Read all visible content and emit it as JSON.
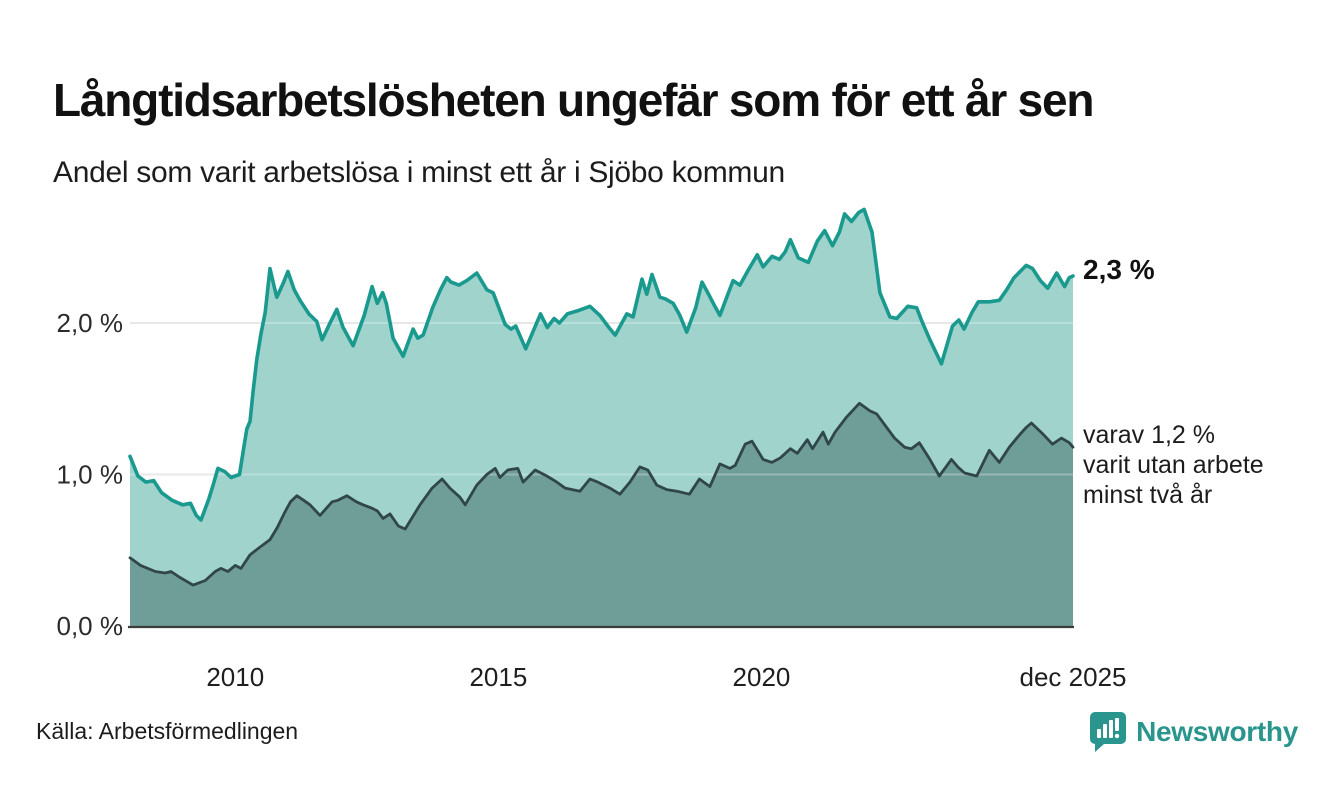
{
  "header": {
    "title": "Långtidsarbetslösheten ungefär som för ett år sen",
    "subtitle": "Andel som varit arbetslösa i minst ett år i Sjöbo kommun"
  },
  "annotations": {
    "latest_total": "2,3 %",
    "subset_lines": [
      "varav 1,2 %",
      "varit utan arbete",
      "minst två år"
    ]
  },
  "footer": {
    "source": "Källa: Arbetsförmedlingen",
    "brand": "Newsworthy",
    "brand_color": "#2a958d"
  },
  "chart_data": {
    "type": "area",
    "title": "Långtidsarbetslösheten ungefär som för ett år sen",
    "subtitle": "Andel som varit arbetslösa i minst ett år i Sjöbo kommun",
    "x_unit": "decimal_year",
    "x_range": [
      2008.0,
      2025.92
    ],
    "ylim": [
      0,
      2.9
    ],
    "grid": true,
    "legend_position": "none",
    "y_ticks": [
      {
        "value": 0.0,
        "label": "0,0 %"
      },
      {
        "value": 1.0,
        "label": "1,0 %"
      },
      {
        "value": 2.0,
        "label": "2,0 %"
      }
    ],
    "x_ticks": [
      {
        "value": 2010.0,
        "label": "2010"
      },
      {
        "value": 2015.0,
        "label": "2015"
      },
      {
        "value": 2020.0,
        "label": "2020"
      },
      {
        "value": 2025.92,
        "label": "dec 2025"
      }
    ],
    "series": [
      {
        "name": "Arbetslösa minst ett år",
        "end_value_pct": 2.3,
        "line_color": "#1a998f",
        "fill_color": "#9fd3cc",
        "line_width": 3.6,
        "points": [
          [
            2008.0,
            1.12
          ],
          [
            2008.15,
            0.99
          ],
          [
            2008.3,
            0.95
          ],
          [
            2008.45,
            0.96
          ],
          [
            2008.6,
            0.88
          ],
          [
            2008.8,
            0.83
          ],
          [
            2009.0,
            0.8
          ],
          [
            2009.15,
            0.81
          ],
          [
            2009.26,
            0.73
          ],
          [
            2009.35,
            0.7
          ],
          [
            2009.5,
            0.84
          ],
          [
            2009.58,
            0.93
          ],
          [
            2009.67,
            1.04
          ],
          [
            2009.8,
            1.02
          ],
          [
            2009.92,
            0.98
          ],
          [
            2010.08,
            1.0
          ],
          [
            2010.15,
            1.15
          ],
          [
            2010.22,
            1.3
          ],
          [
            2010.28,
            1.35
          ],
          [
            2010.34,
            1.55
          ],
          [
            2010.41,
            1.76
          ],
          [
            2010.49,
            1.93
          ],
          [
            2010.57,
            2.07
          ],
          [
            2010.66,
            2.36
          ],
          [
            2010.74,
            2.24
          ],
          [
            2010.79,
            2.17
          ],
          [
            2010.92,
            2.27
          ],
          [
            2011.0,
            2.34
          ],
          [
            2011.12,
            2.22
          ],
          [
            2011.23,
            2.15
          ],
          [
            2011.4,
            2.06
          ],
          [
            2011.55,
            2.01
          ],
          [
            2011.65,
            1.89
          ],
          [
            2011.8,
            2.0
          ],
          [
            2011.93,
            2.09
          ],
          [
            2012.05,
            1.97
          ],
          [
            2012.24,
            1.85
          ],
          [
            2012.45,
            2.05
          ],
          [
            2012.6,
            2.24
          ],
          [
            2012.7,
            2.13
          ],
          [
            2012.8,
            2.2
          ],
          [
            2012.87,
            2.13
          ],
          [
            2013.0,
            1.9
          ],
          [
            2013.19,
            1.78
          ],
          [
            2013.38,
            1.96
          ],
          [
            2013.47,
            1.9
          ],
          [
            2013.57,
            1.92
          ],
          [
            2013.75,
            2.1
          ],
          [
            2013.9,
            2.22
          ],
          [
            2014.02,
            2.3
          ],
          [
            2014.1,
            2.27
          ],
          [
            2014.25,
            2.25
          ],
          [
            2014.4,
            2.28
          ],
          [
            2014.59,
            2.33
          ],
          [
            2014.78,
            2.22
          ],
          [
            2014.9,
            2.2
          ],
          [
            2015.13,
            1.99
          ],
          [
            2015.24,
            1.96
          ],
          [
            2015.33,
            1.98
          ],
          [
            2015.52,
            1.83
          ],
          [
            2015.8,
            2.06
          ],
          [
            2015.93,
            1.97
          ],
          [
            2016.06,
            2.03
          ],
          [
            2016.16,
            2.0
          ],
          [
            2016.31,
            2.06
          ],
          [
            2016.5,
            2.08
          ],
          [
            2016.74,
            2.11
          ],
          [
            2016.93,
            2.05
          ],
          [
            2017.1,
            1.97
          ],
          [
            2017.22,
            1.92
          ],
          [
            2017.44,
            2.06
          ],
          [
            2017.56,
            2.04
          ],
          [
            2017.73,
            2.29
          ],
          [
            2017.82,
            2.19
          ],
          [
            2017.92,
            2.32
          ],
          [
            2018.07,
            2.17
          ],
          [
            2018.17,
            2.16
          ],
          [
            2018.32,
            2.13
          ],
          [
            2018.45,
            2.05
          ],
          [
            2018.58,
            1.94
          ],
          [
            2018.75,
            2.1
          ],
          [
            2018.87,
            2.27
          ],
          [
            2018.98,
            2.2
          ],
          [
            2019.1,
            2.12
          ],
          [
            2019.21,
            2.05
          ],
          [
            2019.35,
            2.18
          ],
          [
            2019.46,
            2.28
          ],
          [
            2019.59,
            2.25
          ],
          [
            2019.75,
            2.35
          ],
          [
            2019.92,
            2.45
          ],
          [
            2020.03,
            2.37
          ],
          [
            2020.2,
            2.44
          ],
          [
            2020.34,
            2.42
          ],
          [
            2020.45,
            2.47
          ],
          [
            2020.55,
            2.55
          ],
          [
            2020.7,
            2.43
          ],
          [
            2020.89,
            2.4
          ],
          [
            2021.06,
            2.54
          ],
          [
            2021.2,
            2.61
          ],
          [
            2021.35,
            2.51
          ],
          [
            2021.48,
            2.6
          ],
          [
            2021.58,
            2.72
          ],
          [
            2021.71,
            2.67
          ],
          [
            2021.85,
            2.73
          ],
          [
            2021.95,
            2.75
          ],
          [
            2022.1,
            2.6
          ],
          [
            2022.25,
            2.2
          ],
          [
            2022.44,
            2.04
          ],
          [
            2022.57,
            2.03
          ],
          [
            2022.78,
            2.11
          ],
          [
            2022.95,
            2.1
          ],
          [
            2023.05,
            2.01
          ],
          [
            2023.2,
            1.89
          ],
          [
            2023.42,
            1.73
          ],
          [
            2023.63,
            1.98
          ],
          [
            2023.75,
            2.02
          ],
          [
            2023.85,
            1.96
          ],
          [
            2024.0,
            2.07
          ],
          [
            2024.12,
            2.14
          ],
          [
            2024.33,
            2.14
          ],
          [
            2024.52,
            2.15
          ],
          [
            2024.66,
            2.22
          ],
          [
            2024.8,
            2.3
          ],
          [
            2025.03,
            2.38
          ],
          [
            2025.15,
            2.36
          ],
          [
            2025.3,
            2.28
          ],
          [
            2025.44,
            2.23
          ],
          [
            2025.61,
            2.33
          ],
          [
            2025.76,
            2.24
          ],
          [
            2025.85,
            2.3
          ],
          [
            2025.92,
            2.31
          ]
        ]
      },
      {
        "name": "Varav utan arbete minst två år",
        "end_value_pct": 1.2,
        "line_color": "#31464a",
        "fill_color": "#6f9d97",
        "line_width": 2.8,
        "points": [
          [
            2008.0,
            0.45
          ],
          [
            2008.2,
            0.4
          ],
          [
            2008.48,
            0.36
          ],
          [
            2008.67,
            0.35
          ],
          [
            2008.78,
            0.36
          ],
          [
            2008.95,
            0.32
          ],
          [
            2009.1,
            0.29
          ],
          [
            2009.2,
            0.27
          ],
          [
            2009.43,
            0.3
          ],
          [
            2009.62,
            0.36
          ],
          [
            2009.73,
            0.38
          ],
          [
            2009.86,
            0.36
          ],
          [
            2010.0,
            0.4
          ],
          [
            2010.11,
            0.38
          ],
          [
            2010.28,
            0.47
          ],
          [
            2010.43,
            0.51
          ],
          [
            2010.66,
            0.57
          ],
          [
            2010.8,
            0.65
          ],
          [
            2010.94,
            0.75
          ],
          [
            2011.05,
            0.82
          ],
          [
            2011.17,
            0.86
          ],
          [
            2011.3,
            0.83
          ],
          [
            2011.42,
            0.8
          ],
          [
            2011.61,
            0.73
          ],
          [
            2011.84,
            0.82
          ],
          [
            2011.95,
            0.83
          ],
          [
            2012.12,
            0.86
          ],
          [
            2012.3,
            0.82
          ],
          [
            2012.43,
            0.8
          ],
          [
            2012.58,
            0.78
          ],
          [
            2012.7,
            0.76
          ],
          [
            2012.81,
            0.71
          ],
          [
            2012.94,
            0.74
          ],
          [
            2013.1,
            0.66
          ],
          [
            2013.23,
            0.64
          ],
          [
            2013.51,
            0.8
          ],
          [
            2013.74,
            0.91
          ],
          [
            2013.93,
            0.97
          ],
          [
            2014.08,
            0.91
          ],
          [
            2014.27,
            0.85
          ],
          [
            2014.37,
            0.8
          ],
          [
            2014.59,
            0.93
          ],
          [
            2014.78,
            1.0
          ],
          [
            2014.94,
            1.04
          ],
          [
            2015.03,
            0.98
          ],
          [
            2015.18,
            1.03
          ],
          [
            2015.37,
            1.04
          ],
          [
            2015.47,
            0.95
          ],
          [
            2015.7,
            1.03
          ],
          [
            2015.92,
            0.99
          ],
          [
            2016.11,
            0.95
          ],
          [
            2016.27,
            0.91
          ],
          [
            2016.55,
            0.89
          ],
          [
            2016.74,
            0.97
          ],
          [
            2016.89,
            0.95
          ],
          [
            2017.12,
            0.91
          ],
          [
            2017.31,
            0.87
          ],
          [
            2017.5,
            0.95
          ],
          [
            2017.69,
            1.05
          ],
          [
            2017.84,
            1.03
          ],
          [
            2018.01,
            0.93
          ],
          [
            2018.2,
            0.9
          ],
          [
            2018.39,
            0.89
          ],
          [
            2018.63,
            0.87
          ],
          [
            2018.82,
            0.97
          ],
          [
            2019.02,
            0.92
          ],
          [
            2019.21,
            1.07
          ],
          [
            2019.4,
            1.04
          ],
          [
            2019.5,
            1.06
          ],
          [
            2019.69,
            1.2
          ],
          [
            2019.82,
            1.22
          ],
          [
            2020.03,
            1.1
          ],
          [
            2020.2,
            1.08
          ],
          [
            2020.36,
            1.11
          ],
          [
            2020.55,
            1.17
          ],
          [
            2020.68,
            1.14
          ],
          [
            2020.87,
            1.23
          ],
          [
            2020.97,
            1.17
          ],
          [
            2021.17,
            1.28
          ],
          [
            2021.27,
            1.2
          ],
          [
            2021.4,
            1.28
          ],
          [
            2021.62,
            1.38
          ],
          [
            2021.86,
            1.47
          ],
          [
            2022.06,
            1.42
          ],
          [
            2022.19,
            1.4
          ],
          [
            2022.4,
            1.3
          ],
          [
            2022.53,
            1.24
          ],
          [
            2022.72,
            1.18
          ],
          [
            2022.85,
            1.17
          ],
          [
            2023.0,
            1.21
          ],
          [
            2023.2,
            1.1
          ],
          [
            2023.38,
            0.99
          ],
          [
            2023.61,
            1.1
          ],
          [
            2023.73,
            1.05
          ],
          [
            2023.86,
            1.01
          ],
          [
            2024.09,
            0.99
          ],
          [
            2024.33,
            1.16
          ],
          [
            2024.52,
            1.08
          ],
          [
            2024.71,
            1.18
          ],
          [
            2024.9,
            1.26
          ],
          [
            2025.03,
            1.31
          ],
          [
            2025.13,
            1.34
          ],
          [
            2025.34,
            1.27
          ],
          [
            2025.53,
            1.2
          ],
          [
            2025.7,
            1.24
          ],
          [
            2025.85,
            1.21
          ],
          [
            2025.92,
            1.18
          ]
        ]
      }
    ],
    "colors": {
      "grid": "#e0e0e0",
      "axis_line": "#3c3c3c"
    }
  }
}
